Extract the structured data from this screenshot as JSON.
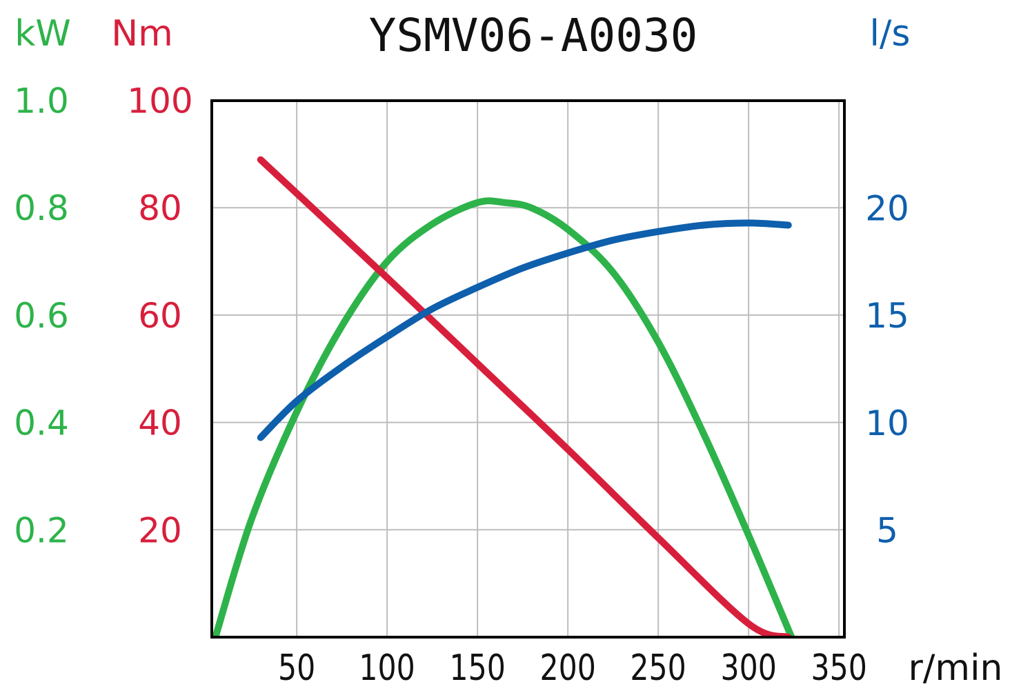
{
  "chart_data": {
    "type": "line",
    "title": "YSMV06-A0030",
    "xlabel": "r/min",
    "x_ticks": [
      50,
      100,
      150,
      200,
      250,
      300,
      350
    ],
    "xlim": [
      3,
      353
    ],
    "grid": true,
    "axes": {
      "power": {
        "unit": "kW",
        "ticks": [
          "0.2",
          "0.4",
          "0.6",
          "0.8",
          "1.0"
        ],
        "range": [
          0,
          1.0
        ],
        "color": "#2db34a"
      },
      "torque": {
        "unit": "Nm",
        "ticks": [
          "20",
          "40",
          "60",
          "80",
          "100"
        ],
        "range": [
          0,
          100
        ],
        "color": "#d71f3c"
      },
      "flow": {
        "unit": "l/s",
        "ticks": [
          "5",
          "10",
          "15",
          "20"
        ],
        "range": [
          0,
          25
        ],
        "color": "#0e5fac"
      }
    },
    "series": [
      {
        "axis": "power",
        "color": "#2db34a",
        "x": [
          5,
          25,
          50,
          75,
          100,
          125,
          150,
          165,
          180,
          200,
          225,
          250,
          275,
          300,
          325
        ],
        "y": [
          0.0,
          0.22,
          0.42,
          0.58,
          0.7,
          0.77,
          0.81,
          0.81,
          0.8,
          0.76,
          0.68,
          0.55,
          0.38,
          0.19,
          -0.01
        ]
      },
      {
        "axis": "torque",
        "color": "#d71f3c",
        "x": [
          30,
          100,
          150,
          200,
          250,
          300,
          322
        ],
        "y": [
          89,
          67,
          51,
          35,
          18.5,
          2.5,
          0
        ]
      },
      {
        "axis": "flow",
        "color": "#0e5fac",
        "x": [
          30,
          50,
          75,
          100,
          125,
          150,
          175,
          200,
          225,
          250,
          275,
          300,
          322
        ],
        "y": [
          9.3,
          11.0,
          12.6,
          14.0,
          15.3,
          16.3,
          17.2,
          17.9,
          18.5,
          18.9,
          19.2,
          19.3,
          19.2
        ]
      }
    ]
  }
}
